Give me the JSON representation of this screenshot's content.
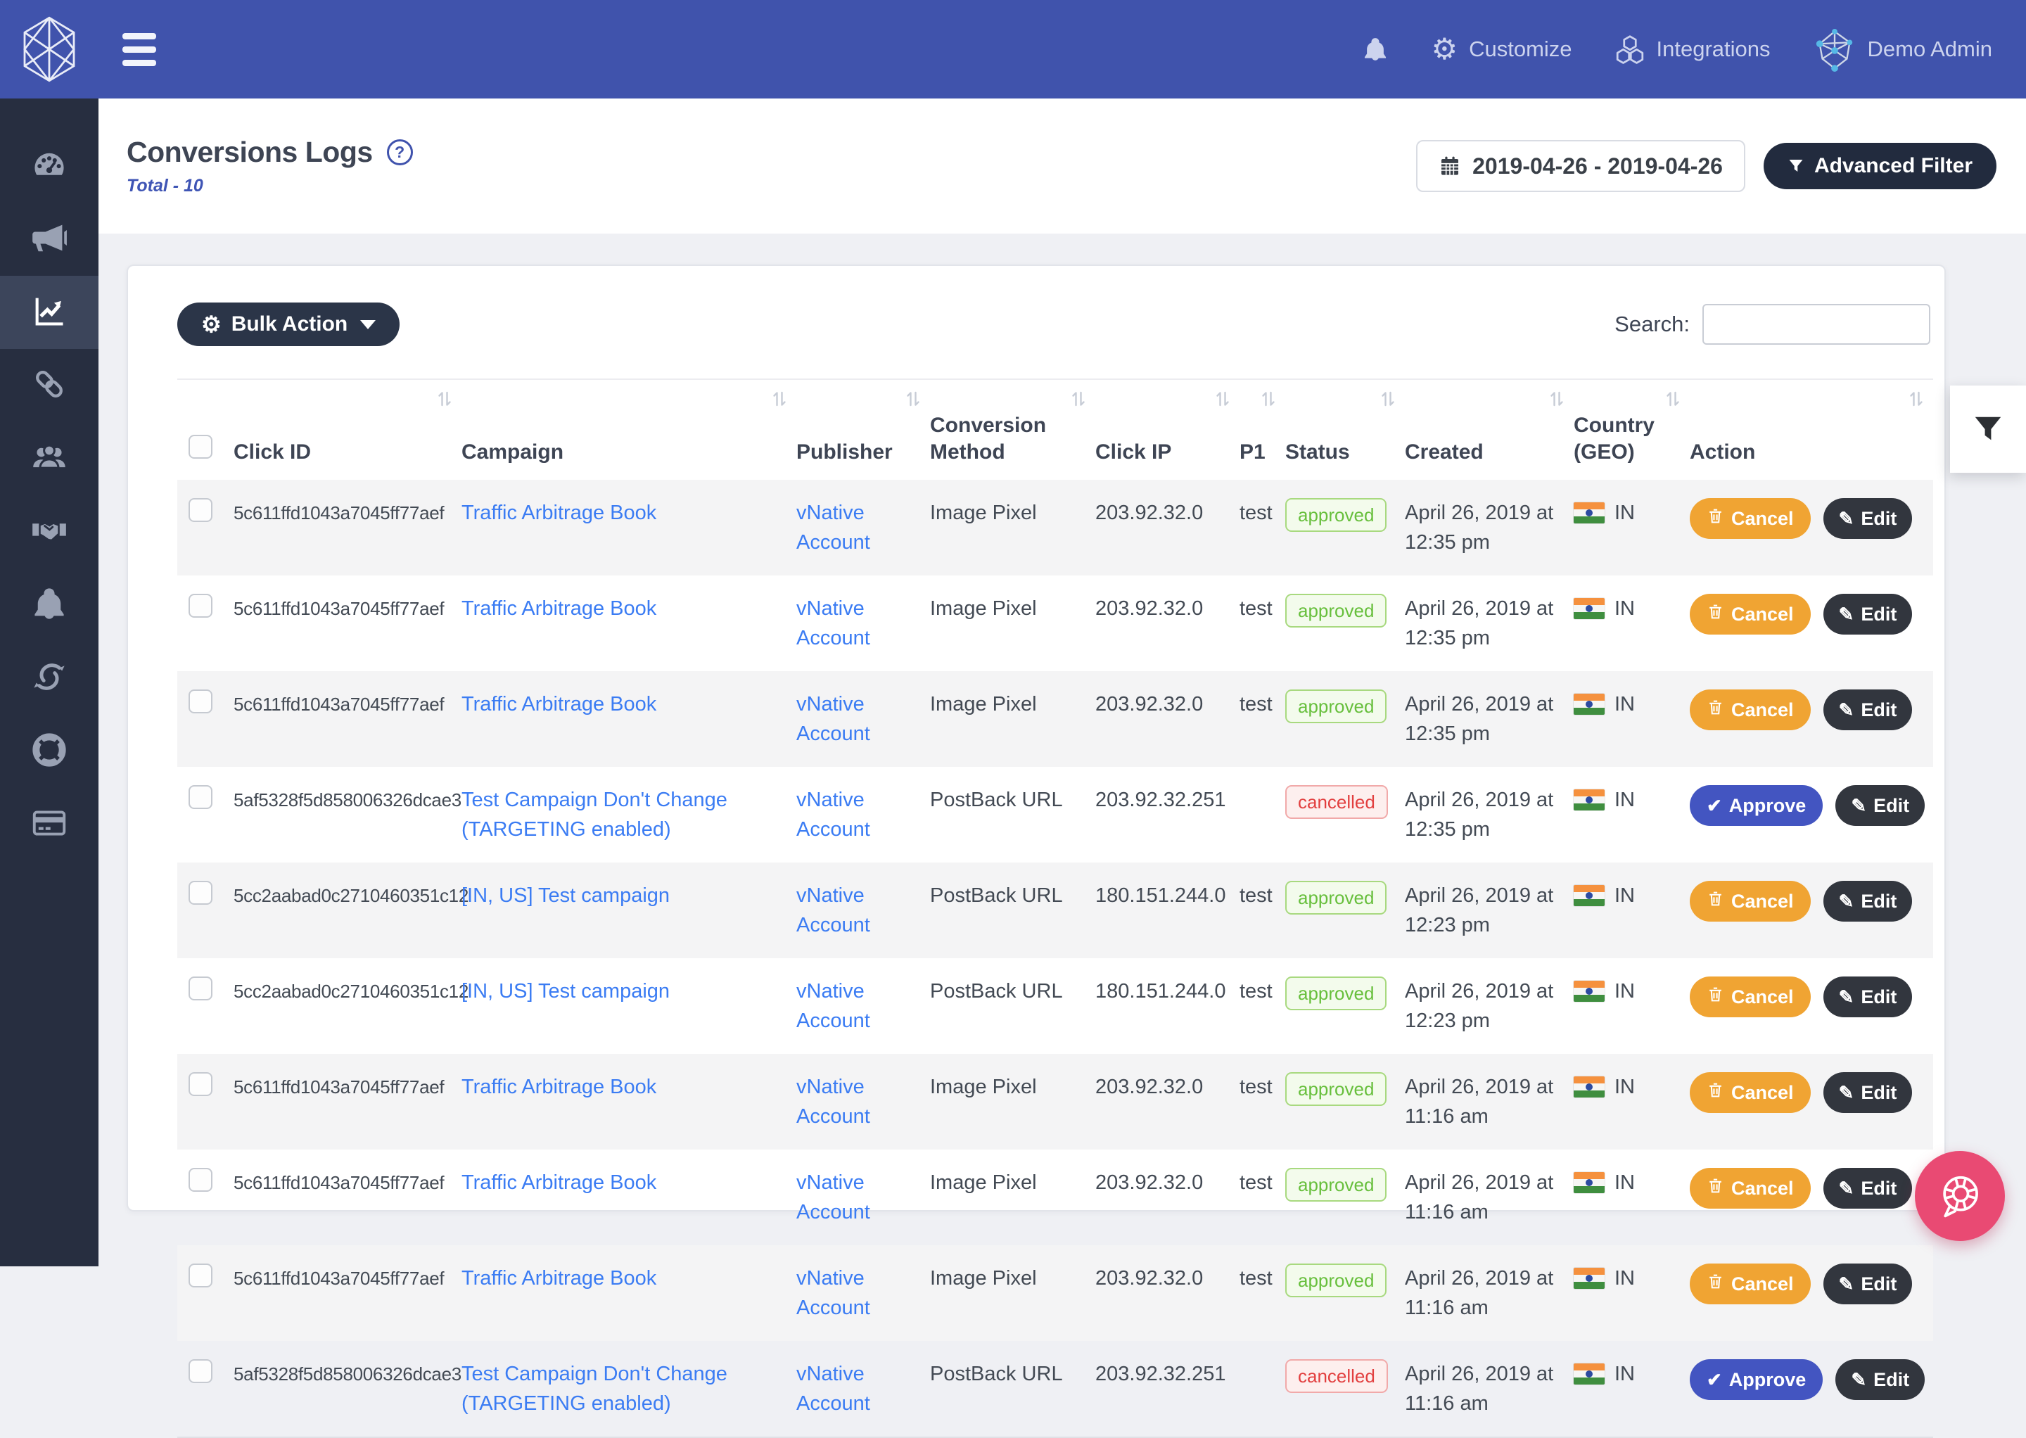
{
  "topbar": {
    "customize": "Customize",
    "integrations": "Integrations",
    "user": "Demo Admin"
  },
  "sidebar": {
    "items": [
      {
        "id": "dashboard",
        "icon": "speedometer-icon",
        "active": false
      },
      {
        "id": "campaigns",
        "icon": "megaphone-icon",
        "active": false
      },
      {
        "id": "reports",
        "icon": "chart-line-icon",
        "active": true
      },
      {
        "id": "links",
        "icon": "chain-link-icon",
        "active": false
      },
      {
        "id": "users",
        "icon": "users-icon",
        "active": false
      },
      {
        "id": "partners",
        "icon": "handshake-icon",
        "active": false
      },
      {
        "id": "notifications",
        "icon": "bell-icon",
        "active": false
      },
      {
        "id": "messages",
        "icon": "swirl-chat-icon",
        "active": false
      },
      {
        "id": "support",
        "icon": "life-ring-icon",
        "active": false
      },
      {
        "id": "billing",
        "icon": "credit-card-icon",
        "active": false
      }
    ]
  },
  "page": {
    "title": "Conversions Logs",
    "help": "?",
    "total": "Total - 10",
    "date_range": "2019-04-26 - 2019-04-26",
    "advanced_filter_label": "Advanced Filter"
  },
  "toolbar": {
    "bulk_action_label": "Bulk Action",
    "search_label": "Search:",
    "search_value": ""
  },
  "table": {
    "columns": [
      "Click ID",
      "Campaign",
      "Publisher",
      "Conversion Method",
      "Click IP",
      "P1",
      "Status",
      "Created",
      "Country (GEO)",
      "Action"
    ],
    "actions": {
      "cancel": "Cancel",
      "edit": "Edit",
      "approve": "Approve"
    },
    "rows": [
      {
        "click_id": "5c611ffd1043a7045ff77aef",
        "campaign": "Traffic Arbitrage Book",
        "publisher": "vNative Account",
        "method": "Image Pixel",
        "click_ip": "203.92.32.0",
        "p1": "test",
        "status": "approved",
        "created": "April 26, 2019 at 12:35 pm",
        "country": "IN",
        "primary_action": "cancel"
      },
      {
        "click_id": "5c611ffd1043a7045ff77aef",
        "campaign": "Traffic Arbitrage Book",
        "publisher": "vNative Account",
        "method": "Image Pixel",
        "click_ip": "203.92.32.0",
        "p1": "test",
        "status": "approved",
        "created": "April 26, 2019 at 12:35 pm",
        "country": "IN",
        "primary_action": "cancel"
      },
      {
        "click_id": "5c611ffd1043a7045ff77aef",
        "campaign": "Traffic Arbitrage Book",
        "publisher": "vNative Account",
        "method": "Image Pixel",
        "click_ip": "203.92.32.0",
        "p1": "test",
        "status": "approved",
        "created": "April 26, 2019 at 12:35 pm",
        "country": "IN",
        "primary_action": "cancel"
      },
      {
        "click_id": "5af5328f5d858006326dcae3",
        "campaign": "Test Campaign Don't Change (TARGETING enabled)",
        "publisher": "vNative Account",
        "method": "PostBack URL",
        "click_ip": "203.92.32.251",
        "p1": "",
        "status": "cancelled",
        "created": "April 26, 2019 at 12:35 pm",
        "country": "IN",
        "primary_action": "approve"
      },
      {
        "click_id": "5cc2aabad0c2710460351c12",
        "campaign": "[IN, US] Test campaign",
        "publisher": "vNative Account",
        "method": "PostBack URL",
        "click_ip": "180.151.244.0",
        "p1": "test",
        "status": "approved",
        "created": "April 26, 2019 at 12:23 pm",
        "country": "IN",
        "primary_action": "cancel"
      },
      {
        "click_id": "5cc2aabad0c2710460351c12",
        "campaign": "[IN, US] Test campaign",
        "publisher": "vNative Account",
        "method": "PostBack URL",
        "click_ip": "180.151.244.0",
        "p1": "test",
        "status": "approved",
        "created": "April 26, 2019 at 12:23 pm",
        "country": "IN",
        "primary_action": "cancel"
      },
      {
        "click_id": "5c611ffd1043a7045ff77aef",
        "campaign": "Traffic Arbitrage Book",
        "publisher": "vNative Account",
        "method": "Image Pixel",
        "click_ip": "203.92.32.0",
        "p1": "test",
        "status": "approved",
        "created": "April 26, 2019 at 11:16 am",
        "country": "IN",
        "primary_action": "cancel"
      },
      {
        "click_id": "5c611ffd1043a7045ff77aef",
        "campaign": "Traffic Arbitrage Book",
        "publisher": "vNative Account",
        "method": "Image Pixel",
        "click_ip": "203.92.32.0",
        "p1": "test",
        "status": "approved",
        "created": "April 26, 2019 at 11:16 am",
        "country": "IN",
        "primary_action": "cancel"
      },
      {
        "click_id": "5c611ffd1043a7045ff77aef",
        "campaign": "Traffic Arbitrage Book",
        "publisher": "vNative Account",
        "method": "Image Pixel",
        "click_ip": "203.92.32.0",
        "p1": "test",
        "status": "approved",
        "created": "April 26, 2019 at 11:16 am",
        "country": "IN",
        "primary_action": "cancel"
      },
      {
        "click_id": "5af5328f5d858006326dcae3",
        "campaign": "Test Campaign Don't Change (TARGETING enabled)",
        "publisher": "vNative Account",
        "method": "PostBack URL",
        "click_ip": "203.92.32.251",
        "p1": "",
        "status": "cancelled",
        "created": "April 26, 2019 at 11:16 am",
        "country": "IN",
        "primary_action": "approve"
      }
    ]
  },
  "colors": {
    "topbar": "#4053ac",
    "sidebar": "#272e40",
    "link": "#3b7cf3",
    "approved": "#67bf3c",
    "cancelled": "#e23f3f",
    "cancel_button": "#f0a433",
    "approve_button": "#4355c1",
    "edit_button": "#32363e",
    "fab": "#e94a73"
  }
}
